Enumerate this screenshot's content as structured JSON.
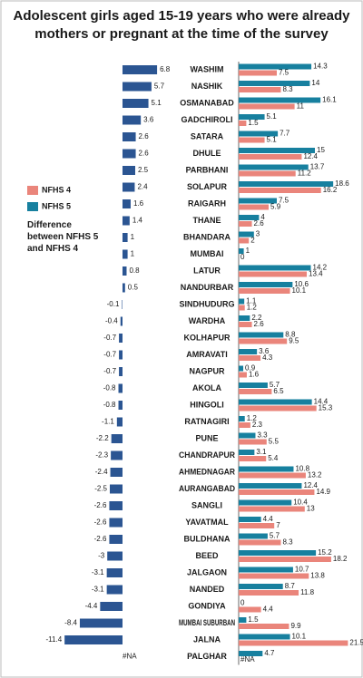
{
  "chart_data": {
    "type": "bar",
    "orientation": "horizontal",
    "title": [
      "Adolescent girls aged 15-19 years who were already",
      "mothers or pregnant at the time of the survey"
    ],
    "categories": [
      "WASHIM",
      "NASHIK",
      "OSMANABAD",
      "GADCHIROLI",
      "SATARA",
      "DHULE",
      "PARBHANI",
      "SOLAPUR",
      "RAIGARH",
      "THANE",
      "BHANDARA",
      "MUMBAI",
      "LATUR",
      "NANDURBAR",
      "SINDHUDURG",
      "WARDHA",
      "KOLHAPUR",
      "AMRAVATI",
      "NAGPUR",
      "AKOLA",
      "HINGOLI",
      "RATNAGIRI",
      "PUNE",
      "CHANDRAPUR",
      "AHMEDNAGAR",
      "AURANGABAD",
      "SANGLI",
      "YAVATMAL",
      "BULDHANA",
      "BEED",
      "JALGAON",
      "NANDED",
      "GONDIYA",
      "MUMBAI SUBURBAN",
      "JALNA",
      "PALGHAR"
    ],
    "series": [
      {
        "name": "NFHS 4",
        "color": "#ea857b",
        "values": [
          7.5,
          8.3,
          11,
          1.5,
          5.1,
          12.4,
          11.2,
          16.2,
          5.9,
          2.6,
          2,
          0,
          13.4,
          10.1,
          1.2,
          2.6,
          9.5,
          4.3,
          1.6,
          6.5,
          15.3,
          2.3,
          5.5,
          5.4,
          13.2,
          14.9,
          13,
          7,
          8.3,
          18.2,
          13.8,
          11.8,
          4.4,
          9.9,
          21.5,
          null
        ],
        "value_labels": [
          "7.5",
          "8.3",
          "11",
          "1.5",
          "5.1",
          "12.4",
          "11.2",
          "16.2",
          "5.9",
          "2.6",
          "2",
          "0",
          "13.4",
          "10.1",
          "1.2",
          "2.6",
          "9.5",
          "4.3",
          "1.6",
          "6.5",
          "15.3",
          "2.3",
          "5.5",
          "5.4",
          "13.2",
          "14.9",
          "13",
          "7",
          "8.3",
          "18.2",
          "13.8",
          "11.8",
          "4.4",
          "9.9",
          "21.5",
          "#NA"
        ]
      },
      {
        "name": "NFHS 5",
        "color": "#17809f",
        "values": [
          14.3,
          14,
          16.1,
          5.1,
          7.7,
          15,
          13.7,
          18.6,
          7.5,
          4,
          3,
          1,
          14.2,
          10.6,
          1.1,
          2.2,
          8.8,
          3.6,
          0.9,
          5.7,
          14.4,
          1.2,
          3.3,
          3.1,
          10.8,
          12.4,
          10.4,
          4.4,
          5.7,
          15.2,
          10.7,
          8.7,
          0,
          1.5,
          10.1,
          4.7
        ]
      }
    ],
    "difference": {
      "name": "Difference between NFHS 5 and NFHS 4",
      "color": "#2b5592",
      "values": [
        6.8,
        5.7,
        5.1,
        3.6,
        2.6,
        2.6,
        2.5,
        2.4,
        1.6,
        1.4,
        1,
        1,
        0.8,
        0.5,
        -0.1,
        -0.4,
        -0.7,
        -0.7,
        -0.7,
        -0.8,
        -0.8,
        -1.1,
        -2.2,
        -2.3,
        -2.4,
        -2.5,
        -2.6,
        -2.6,
        -2.6,
        -3,
        -3.1,
        -3.1,
        -4.4,
        -8.4,
        -11.4,
        null
      ],
      "value_labels": [
        "6.8",
        "5.7",
        "5.1",
        "3.6",
        "2.6",
        "2.6",
        "2.5",
        "2.4",
        "1.6",
        "1.4",
        "1",
        "1",
        "0.8",
        "0.5",
        "-0.1",
        "-0.4",
        "-0.7",
        "-0.7",
        "-0.7",
        "-0.8",
        "-0.8",
        "-1.1",
        "-2.2",
        "-2.3",
        "-2.4",
        "-2.5",
        "-2.6",
        "-2.6",
        "-2.6",
        "-3",
        "-3.1",
        "-3.1",
        "-4.4",
        "-8.4",
        "-11.4",
        "#NA"
      ]
    }
  }
}
